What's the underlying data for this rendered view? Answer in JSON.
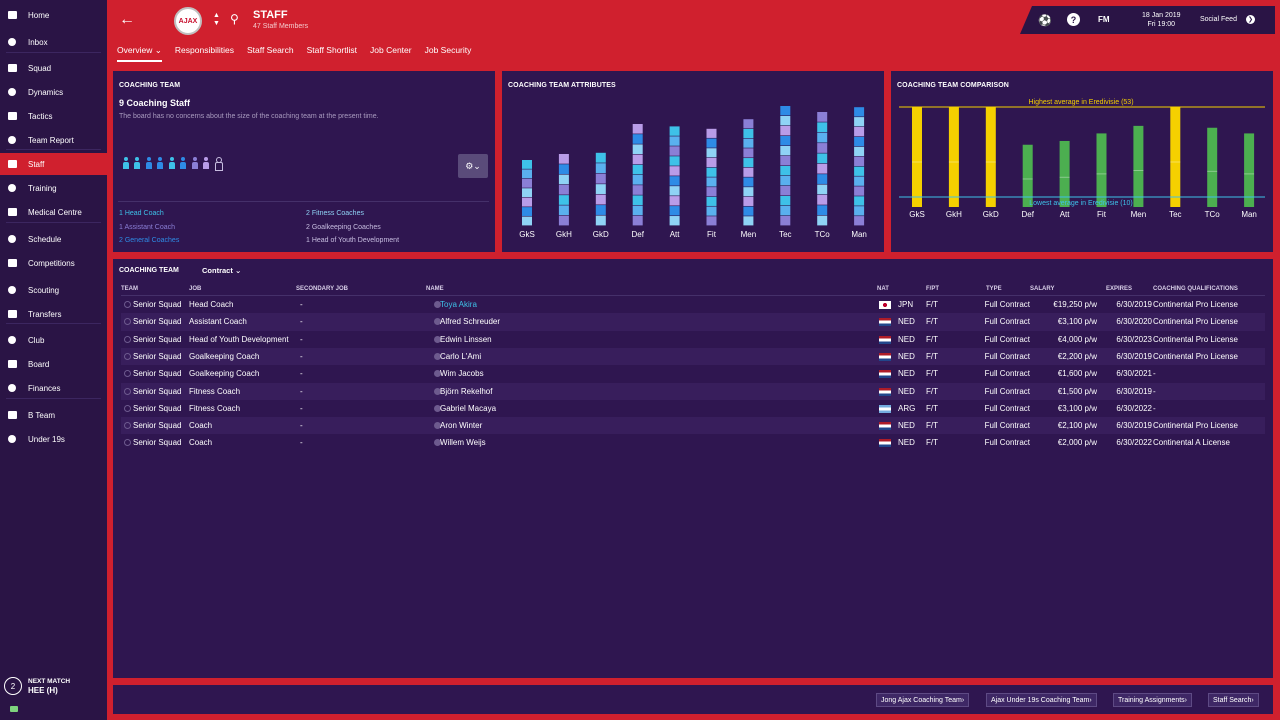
{
  "sidebar": {
    "items": [
      {
        "label": "Home",
        "icon": "home-icon"
      },
      {
        "label": "Inbox",
        "icon": "inbox-icon"
      },
      {
        "label": "Squad",
        "icon": "squad-icon"
      },
      {
        "label": "Dynamics",
        "icon": "dynamics-icon"
      },
      {
        "label": "Tactics",
        "icon": "tactics-icon"
      },
      {
        "label": "Team Report",
        "icon": "report-icon"
      },
      {
        "label": "Staff",
        "icon": "staff-icon"
      },
      {
        "label": "Training",
        "icon": "training-icon"
      },
      {
        "label": "Medical Centre",
        "icon": "medical-icon"
      },
      {
        "label": "Schedule",
        "icon": "calendar-icon"
      },
      {
        "label": "Competitions",
        "icon": "trophy-icon"
      },
      {
        "label": "Scouting",
        "icon": "scouting-icon"
      },
      {
        "label": "Transfers",
        "icon": "transfers-icon"
      },
      {
        "label": "Club",
        "icon": "club-icon"
      },
      {
        "label": "Board",
        "icon": "board-icon"
      },
      {
        "label": "Finances",
        "icon": "finances-icon"
      },
      {
        "label": "B Team",
        "icon": "team-icon"
      },
      {
        "label": "Under 19s",
        "icon": "team-icon"
      }
    ],
    "active": "Staff",
    "next_match": {
      "count": "2",
      "label": "NEXT MATCH",
      "team": "HEE (H)"
    }
  },
  "header": {
    "title": "STAFF",
    "subtitle": "47 Staff Members",
    "crest_text": "AJAX",
    "tabs": [
      "Overview",
      "Responsibilities",
      "Staff Search",
      "Staff Shortlist",
      "Job Center",
      "Job Security"
    ],
    "active_tab": "Overview",
    "date_line1": "18 Jan 2019",
    "date_line2": "Fri 19:00",
    "fm_label": "FM",
    "help_label": "?",
    "social_feed": "Social Feed"
  },
  "coaching_team": {
    "title": "COACHING TEAM",
    "count_label": "9 Coaching Staff",
    "note": "The board has no concerns about the size of the coaching team at the present time.",
    "people_colors": [
      "#3ec1e8",
      "#3ec1e8",
      "#2e8be6",
      "#2e8be6",
      "#3ec1e8",
      "#2e8be6",
      "#8b7fd6",
      "#b99ce8",
      "#ffffff"
    ],
    "roles_left": [
      {
        "text": "1 Head Coach",
        "color": "#3ec1e8"
      },
      {
        "text": "1 Assistant Coach",
        "color": "#8b7fd6"
      },
      {
        "text": "2 General Coaches",
        "color": "#2e8be6"
      }
    ],
    "roles_right": [
      {
        "text": "2 Fitness Coaches",
        "color": "#8fd3f5"
      },
      {
        "text": "2 Goalkeeping Coaches",
        "color": "#c7bde0"
      },
      {
        "text": "1 Head of Youth Development",
        "color": "#c7bde0"
      }
    ]
  },
  "chart_data": [
    {
      "type": "bar",
      "title": "COACHING TEAM ATTRIBUTES",
      "categories": [
        "GkS",
        "GkH",
        "GkD",
        "Def",
        "Att",
        "Fit",
        "Men",
        "Tec",
        "TCo",
        "Man"
      ],
      "values": [
        55,
        60,
        61,
        85,
        83,
        81,
        89,
        100,
        95,
        99
      ],
      "ylim": [
        0,
        100
      ]
    },
    {
      "type": "bar",
      "title": "COACHING TEAM COMPARISON",
      "categories": [
        "GkS",
        "GkH",
        "GkD",
        "Def",
        "Att",
        "Fit",
        "Men",
        "Tec",
        "TCo",
        "Man"
      ],
      "values": [
        53,
        53,
        53,
        33,
        35,
        39,
        43,
        53,
        42,
        39
      ],
      "highlight": [
        "top",
        "top",
        "top",
        "normal",
        "normal",
        "normal",
        "normal",
        "top",
        "normal",
        "normal"
      ],
      "colors": {
        "top": "#f5d000",
        "normal": "#4caf50"
      },
      "highest_label": "Highest average in Eredivisie (53)",
      "lowest_label": "Lowest average in Eredivisie (10)",
      "highest": 53,
      "lowest": 10,
      "ylim": [
        0,
        53
      ]
    }
  ],
  "staff_table": {
    "title": "COACHING TEAM",
    "view": "Contract",
    "columns": [
      "TEAM",
      "JOB",
      "SECONDARY JOB",
      "NAME",
      "NAT",
      "F/PT",
      "TYPE",
      "SALARY",
      "EXPIRES",
      "COACHING QUALIFICATIONS"
    ],
    "rows": [
      {
        "team": "Senior Squad",
        "job": "Head Coach",
        "secondary": "-",
        "name": "Toya Akira",
        "nat": "JPN",
        "fpt": "F/T",
        "type": "Full Contract",
        "salary": "€19,250 p/w",
        "expires": "6/30/2019",
        "qual": "Continental Pro License",
        "flag": "jpn"
      },
      {
        "team": "Senior Squad",
        "job": "Assistant Coach",
        "secondary": "-",
        "name": "Alfred Schreuder",
        "nat": "NED",
        "fpt": "F/T",
        "type": "Full Contract",
        "salary": "€3,100 p/w",
        "expires": "6/30/2020",
        "qual": "Continental Pro License",
        "flag": "ned"
      },
      {
        "team": "Senior Squad",
        "job": "Head of Youth Development",
        "secondary": "-",
        "name": "Edwin Linssen",
        "nat": "NED",
        "fpt": "F/T",
        "type": "Full Contract",
        "salary": "€4,000 p/w",
        "expires": "6/30/2023",
        "qual": "Continental Pro License",
        "flag": "ned"
      },
      {
        "team": "Senior Squad",
        "job": "Goalkeeping Coach",
        "secondary": "-",
        "name": "Carlo L'Ami",
        "nat": "NED",
        "fpt": "F/T",
        "type": "Full Contract",
        "salary": "€2,200 p/w",
        "expires": "6/30/2019",
        "qual": "Continental Pro License",
        "flag": "ned"
      },
      {
        "team": "Senior Squad",
        "job": "Goalkeeping Coach",
        "secondary": "-",
        "name": "Wim Jacobs",
        "nat": "NED",
        "fpt": "F/T",
        "type": "Full Contract",
        "salary": "€1,600 p/w",
        "expires": "6/30/2021",
        "qual": "-",
        "flag": "ned"
      },
      {
        "team": "Senior Squad",
        "job": "Fitness Coach",
        "secondary": "-",
        "name": "Björn Rekelhof",
        "nat": "NED",
        "fpt": "F/T",
        "type": "Full Contract",
        "salary": "€1,500 p/w",
        "expires": "6/30/2019",
        "qual": "-",
        "flag": "ned"
      },
      {
        "team": "Senior Squad",
        "job": "Fitness Coach",
        "secondary": "-",
        "name": "Gabriel Macaya",
        "nat": "ARG",
        "fpt": "F/T",
        "type": "Full Contract",
        "salary": "€3,100 p/w",
        "expires": "6/30/2022",
        "qual": "-",
        "flag": "arg"
      },
      {
        "team": "Senior Squad",
        "job": "Coach",
        "secondary": "-",
        "name": "Aron Winter",
        "nat": "NED",
        "fpt": "F/T",
        "type": "Full Contract",
        "salary": "€2,100 p/w",
        "expires": "6/30/2019",
        "qual": "Continental Pro License",
        "flag": "ned"
      },
      {
        "team": "Senior Squad",
        "job": "Coach",
        "secondary": "-",
        "name": "Willem Weijs",
        "nat": "NED",
        "fpt": "F/T",
        "type": "Full Contract",
        "salary": "€2,000 p/w",
        "expires": "6/30/2022",
        "qual": "Continental A License",
        "flag": "ned"
      }
    ]
  },
  "footer": {
    "buttons": [
      "Jong Ajax Coaching Team",
      "Ajax Under 19s Coaching Team",
      "Training Assignments",
      "Staff Search"
    ]
  },
  "colors": {
    "accent": "#d0202e",
    "panel": "#2f1650",
    "sidebar": "#2a1445",
    "link": "#3ec1e8"
  }
}
